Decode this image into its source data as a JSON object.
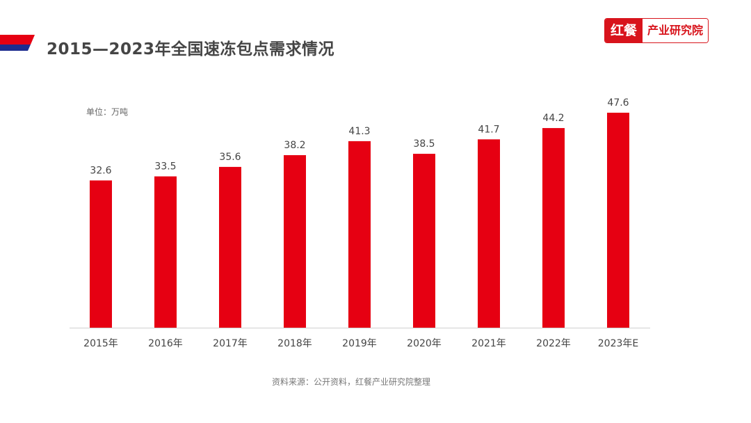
{
  "header": {
    "title": "2015—2023年全国速冻包点需求情况",
    "flag_colors": [
      "#e60012",
      "#1d2c8f"
    ]
  },
  "logo": {
    "part1": "红餐",
    "part2": "产业研究院",
    "color": "#d8141c"
  },
  "footer": {
    "source": "资料来源：公开资料，红餐产业研究院整理"
  },
  "chart_data": {
    "type": "bar",
    "title": "2015—2023年全国速冻包点需求情况",
    "unit_label": "单位：万吨",
    "categories": [
      "2015年",
      "2016年",
      "2017年",
      "2018年",
      "2019年",
      "2020年",
      "2021年",
      "2022年",
      "2023年E"
    ],
    "values": [
      32.6,
      33.5,
      35.6,
      38.2,
      41.3,
      38.5,
      41.7,
      44.2,
      47.6
    ],
    "ylim": [
      0,
      50
    ],
    "grid": false,
    "bar_color": "#e60012",
    "data_labels": true
  }
}
